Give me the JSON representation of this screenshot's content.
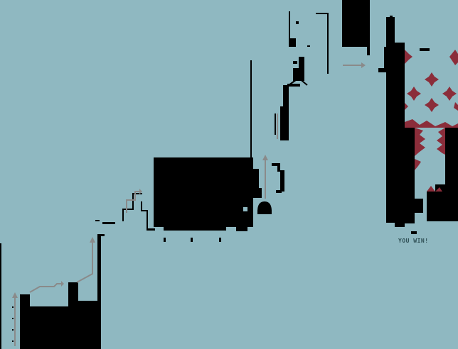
{
  "map": {
    "win_label": "YOU WIN!"
  },
  "colors": {
    "background": "#8fb8c1",
    "wall": "#000000",
    "path_hint": "#8a8a8a",
    "hazard": "#8b2d3a",
    "label": "#2f4f55"
  },
  "icons": {
    "arrow": "arrow-icon",
    "spike": "spike-icon"
  }
}
